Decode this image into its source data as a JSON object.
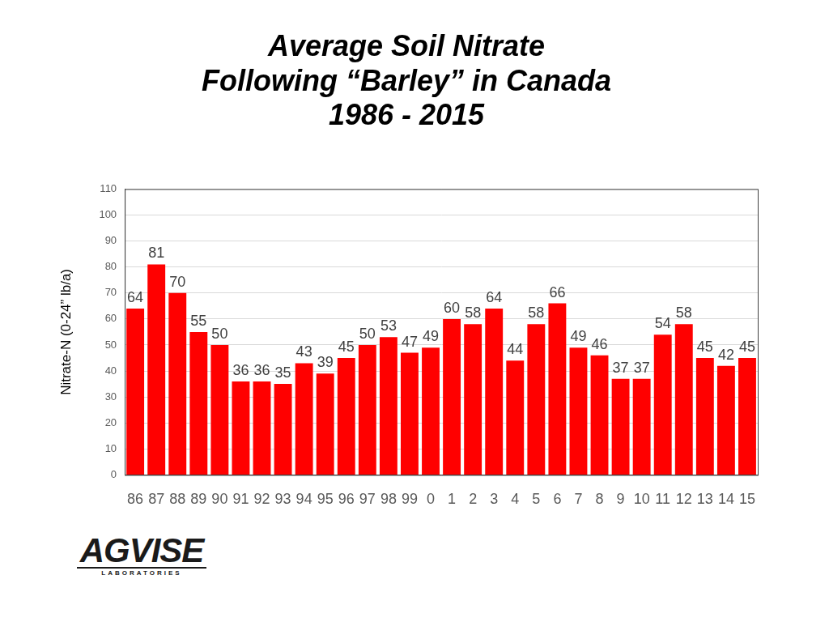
{
  "chart_data": {
    "type": "bar",
    "title": "Average Soil Nitrate\nFollowing “Barley” in Canada\n1986 - 2015",
    "y_label": "Nitrate-N (0-24” lb/a)",
    "categories": [
      "86",
      "87",
      "88",
      "89",
      "90",
      "91",
      "92",
      "93",
      "94",
      "95",
      "96",
      "97",
      "98",
      "99",
      "0",
      "1",
      "2",
      "3",
      "4",
      "5",
      "6",
      "7",
      "8",
      "9",
      "10",
      "11",
      "12",
      "13",
      "14",
      "15"
    ],
    "values": [
      64,
      81,
      70,
      55,
      50,
      36,
      36,
      35,
      43,
      39,
      45,
      50,
      53,
      47,
      49,
      60,
      58,
      64,
      44,
      58,
      66,
      49,
      46,
      37,
      37,
      54,
      58,
      45,
      42,
      45
    ],
    "color": "#ff0000",
    "ylim": [
      0,
      110
    ],
    "yticks": [
      0,
      10,
      20,
      30,
      40,
      50,
      60,
      70,
      80,
      90,
      100,
      110
    ],
    "grid": true,
    "data_labels": true,
    "logo": [
      "AGVISE",
      "LABORATORIES"
    ]
  }
}
